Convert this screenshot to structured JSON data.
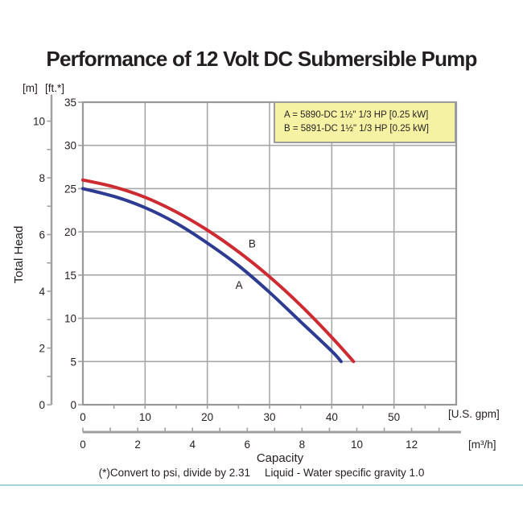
{
  "page": {
    "title": "Performance of 12 Volt DC Submersible Pump",
    "footnote_psi": "(*)Convert to psi, divide by 2.31",
    "footnote_liquid": "Liquid - Water specific gravity 1.0"
  },
  "legend": {
    "entries": [
      "A = 5890-DC 1½\" 1/3 HP [0.25 kW]",
      "B = 5891-DC 1½\" 1/3 HP [0.25 kW]"
    ]
  },
  "axis_units": {
    "y_meters": "[m]",
    "y_feet": "[ft.*]",
    "x_gpm": "[U.S. gpm]",
    "x_m3h": "[m³/h]"
  },
  "axis_titles": {
    "y": "Total Head",
    "x": "Capacity"
  },
  "colors": {
    "curve_a": "#2e3b92",
    "curve_b": "#cd2a31",
    "grid": "#a8a8a8",
    "border": "#989898",
    "axis_bar": "#a0a0a0",
    "legend_bg": "#f6f2a4",
    "legend_border": "#9c9c9c",
    "divider": "#a7d5da",
    "text": "#231f20"
  },
  "chart_data": {
    "type": "line",
    "title": "Performance of 12 Volt DC Submersible Pump",
    "xlabel": "Capacity",
    "ylabel": "Total Head",
    "grid": true,
    "legend_position": "top-right",
    "x_axis": {
      "gpm_range": [
        0,
        60
      ],
      "gpm_major_ticks": [
        0,
        10,
        20,
        30,
        40,
        50
      ],
      "gpm_minor_step": 5,
      "m3h_label_ticks": [
        0,
        2,
        4,
        6,
        8,
        10,
        12
      ],
      "m3h_minor_step": 1,
      "m3h_tick_max": 13,
      "gpm_per_m3h": 4.40287
    },
    "y_axis": {
      "ft_range": [
        0,
        35
      ],
      "ft_ticks": [
        0,
        5,
        10,
        15,
        20,
        25,
        30,
        35
      ],
      "m_label_ticks": [
        0,
        2,
        4,
        6,
        8,
        10
      ],
      "m_minor_step": 1,
      "m_tick_max": 10,
      "ft_per_m": 3.28084
    },
    "series": [
      {
        "name": "A",
        "model": "5890-DC 1½\" 1/3 HP [0.25 kW]",
        "color": "#2e3b92",
        "points_gpm_ft": [
          [
            0,
            25
          ],
          [
            5,
            24.1
          ],
          [
            10,
            22.8
          ],
          [
            15,
            21.0
          ],
          [
            20,
            18.7
          ],
          [
            25,
            16.1
          ],
          [
            30,
            13.0
          ],
          [
            35,
            9.6
          ],
          [
            40,
            6.2
          ],
          [
            41.5,
            5.0
          ]
        ]
      },
      {
        "name": "B",
        "model": "5891-DC 1½\" 1/3 HP [0.25 kW]",
        "color": "#cd2a31",
        "points_gpm_ft": [
          [
            0,
            26
          ],
          [
            5,
            25.2
          ],
          [
            10,
            24.0
          ],
          [
            15,
            22.3
          ],
          [
            20,
            20.2
          ],
          [
            25,
            17.7
          ],
          [
            30,
            14.8
          ],
          [
            35,
            11.5
          ],
          [
            40,
            7.8
          ],
          [
            43.5,
            5.0
          ]
        ]
      }
    ],
    "annotations": [
      {
        "text": "A",
        "gpm": 25.1,
        "ft": 13.8
      },
      {
        "text": "B",
        "gpm": 27.2,
        "ft": 18.6
      }
    ]
  }
}
